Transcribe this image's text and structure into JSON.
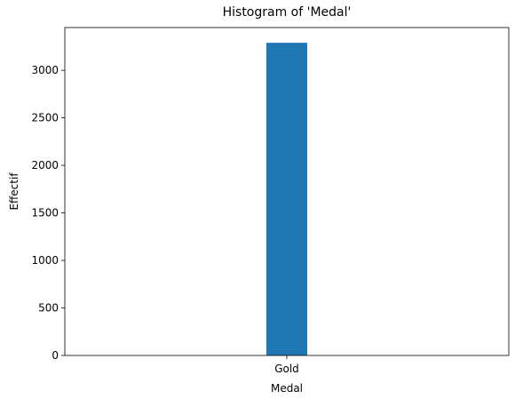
{
  "chart_data": {
    "type": "bar",
    "title": "Histogram of 'Medal'",
    "xlabel": "Medal",
    "ylabel": "Effectif",
    "categories": [
      "Gold"
    ],
    "values": [
      3290
    ],
    "ylim": [
      0,
      3450
    ],
    "yticks": [
      0,
      500,
      1000,
      1500,
      2000,
      2500,
      3000
    ],
    "grid": false,
    "bar_color": "#1f77b4"
  }
}
